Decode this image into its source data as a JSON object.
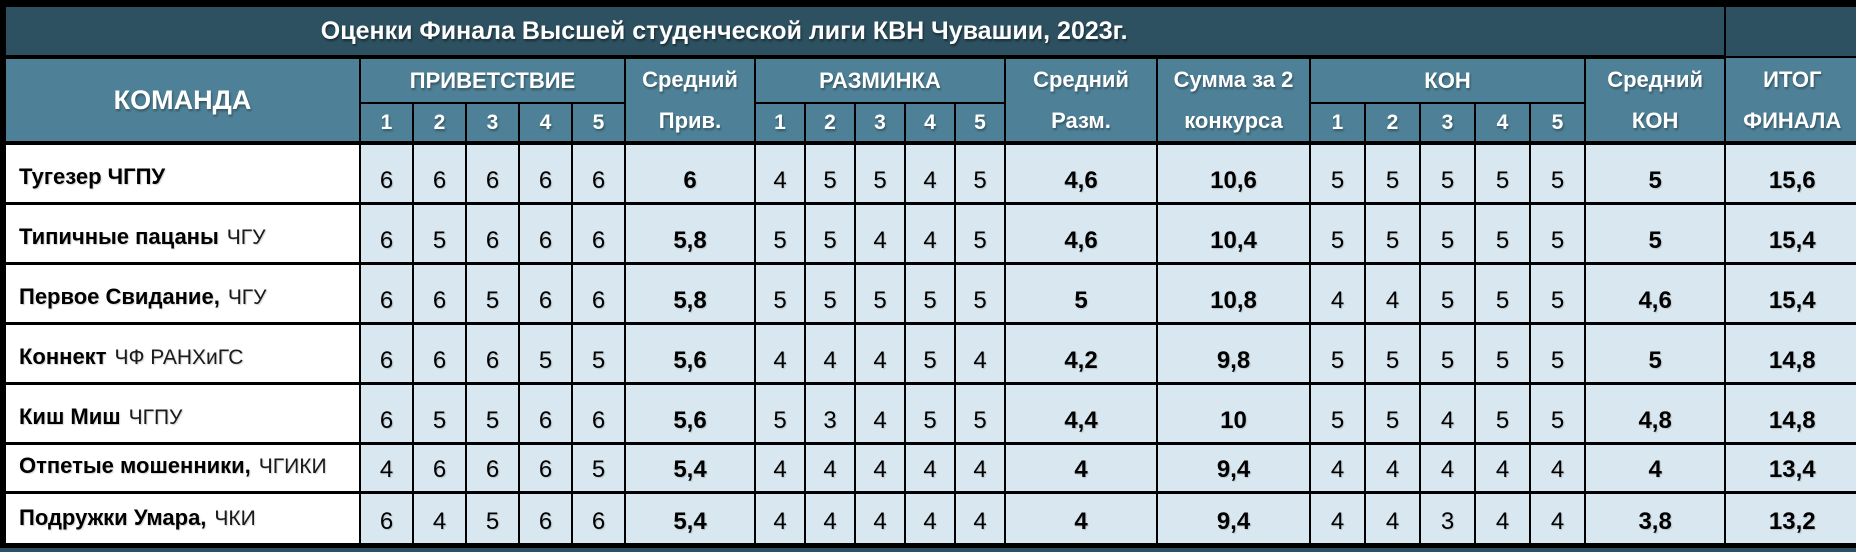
{
  "title": "Оценки Финала Высшей студенческой лиги КВН Чувашии, 2023г.",
  "columns": {
    "team": "КОМАНДА",
    "greeting": "ПРИВЕТСТВИЕ",
    "avg_greeting": [
      "Средний",
      "Прив."
    ],
    "warmup": "РАЗМИНКА",
    "avg_warmup": [
      "Средний",
      "Разм."
    ],
    "sum_two": [
      "Сумма за 2",
      "конкурса"
    ],
    "kon": "КОН",
    "avg_kon": [
      "Средний",
      "КОН"
    ],
    "final": [
      "ИТОГ",
      "ФИНАЛА"
    ],
    "judges": [
      "1",
      "2",
      "3",
      "4",
      "5"
    ]
  },
  "colors": {
    "title_bg": "#2D5160",
    "header_bg": "#4E8197",
    "score_cell_bg": "#D9E8F0",
    "team_cell_bg": "#FFFFFF",
    "border": "#000000",
    "header_text": "#FFFFFF",
    "data_text": "#000000"
  },
  "rows": [
    {
      "name": "Тугезер ЧГПУ",
      "org": "",
      "greeting": [
        "6",
        "6",
        "6",
        "6",
        "6"
      ],
      "greeting_avg": "6",
      "warmup": [
        "4",
        "5",
        "5",
        "4",
        "5"
      ],
      "warmup_avg": "4,6",
      "sum2": "10,6",
      "kon": [
        "5",
        "5",
        "5",
        "5",
        "5"
      ],
      "kon_avg": "5",
      "final": "15,6"
    },
    {
      "name": "Типичные пацаны",
      "org": "ЧГУ",
      "greeting": [
        "6",
        "5",
        "6",
        "6",
        "6"
      ],
      "greeting_avg": "5,8",
      "warmup": [
        "5",
        "5",
        "4",
        "4",
        "5"
      ],
      "warmup_avg": "4,6",
      "sum2": "10,4",
      "kon": [
        "5",
        "5",
        "5",
        "5",
        "5"
      ],
      "kon_avg": "5",
      "final": "15,4"
    },
    {
      "name": "Первое Свидание,",
      "org": "ЧГУ",
      "greeting": [
        "6",
        "6",
        "5",
        "6",
        "6"
      ],
      "greeting_avg": "5,8",
      "warmup": [
        "5",
        "5",
        "5",
        "5",
        "5"
      ],
      "warmup_avg": "5",
      "sum2": "10,8",
      "kon": [
        "4",
        "4",
        "5",
        "5",
        "5"
      ],
      "kon_avg": "4,6",
      "final": "15,4"
    },
    {
      "name": "Коннект",
      "org": "ЧФ РАНХиГС",
      "greeting": [
        "6",
        "6",
        "6",
        "5",
        "5"
      ],
      "greeting_avg": "5,6",
      "warmup": [
        "4",
        "4",
        "4",
        "5",
        "4"
      ],
      "warmup_avg": "4,2",
      "sum2": "9,8",
      "kon": [
        "5",
        "5",
        "5",
        "5",
        "5"
      ],
      "kon_avg": "5",
      "final": "14,8"
    },
    {
      "name": "Киш Миш",
      "org": "ЧГПУ",
      "greeting": [
        "6",
        "5",
        "5",
        "6",
        "6"
      ],
      "greeting_avg": "5,6",
      "warmup": [
        "5",
        "3",
        "4",
        "5",
        "5"
      ],
      "warmup_avg": "4,4",
      "sum2": "10",
      "kon": [
        "5",
        "5",
        "4",
        "5",
        "5"
      ],
      "kon_avg": "4,8",
      "final": "14,8"
    },
    {
      "name": "Отпетые мошенники,",
      "org": "ЧГИКИ",
      "greeting": [
        "4",
        "6",
        "6",
        "6",
        "5"
      ],
      "greeting_avg": "5,4",
      "warmup": [
        "4",
        "4",
        "4",
        "4",
        "4"
      ],
      "warmup_avg": "4",
      "sum2": "9,4",
      "kon": [
        "4",
        "4",
        "4",
        "4",
        "4"
      ],
      "kon_avg": "4",
      "final": "13,4"
    },
    {
      "name": "Подружки Умара,",
      "org": "ЧКИ",
      "greeting": [
        "6",
        "4",
        "5",
        "6",
        "6"
      ],
      "greeting_avg": "5,4",
      "warmup": [
        "4",
        "4",
        "4",
        "4",
        "4"
      ],
      "warmup_avg": "4",
      "sum2": "9,4",
      "kon": [
        "4",
        "4",
        "3",
        "4",
        "4"
      ],
      "kon_avg": "3,8",
      "final": "13,2"
    }
  ]
}
